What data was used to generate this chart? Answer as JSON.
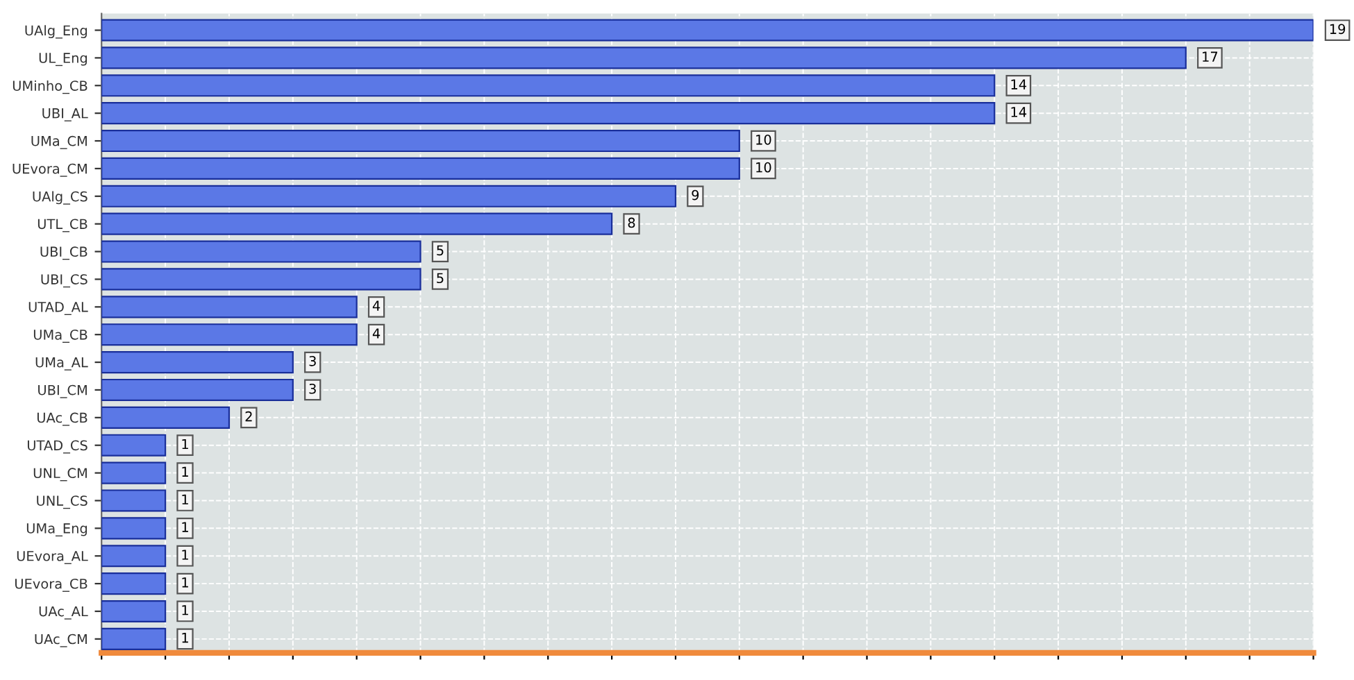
{
  "chart_data": {
    "type": "bar",
    "orientation": "horizontal",
    "categories": [
      "UAlg_Eng",
      "UL_Eng",
      "UMinho_CB",
      "UBI_AL",
      "UMa_CM",
      "UEvora_CM",
      "UAlg_CS",
      "UTL_CB",
      "UBI_CB",
      "UBI_CS",
      "UTAD_AL",
      "UMa_CB",
      "UMa_AL",
      "UBI_CM",
      "UAc_CB",
      "UTAD_CS",
      "UNL_CM",
      "UNL_CS",
      "UMa_Eng",
      "UEvora_AL",
      "UEvora_CB",
      "UAc_AL",
      "UAc_CM"
    ],
    "values": [
      19,
      17,
      14,
      14,
      10,
      10,
      9,
      8,
      5,
      5,
      4,
      4,
      3,
      3,
      2,
      1,
      1,
      1,
      1,
      1,
      1,
      1,
      1
    ],
    "color": "#5b78e6",
    "xlim": [
      0,
      19
    ],
    "xticks": [
      {
        "value": 0,
        "label": null
      },
      {
        "value": 1,
        "label": null
      },
      {
        "value": 2,
        "label": null
      },
      {
        "value": 3,
        "label": null
      },
      {
        "value": 4,
        "label": null
      },
      {
        "value": 5,
        "label": null
      },
      {
        "value": 6,
        "label": null
      },
      {
        "value": 7,
        "label": null
      },
      {
        "value": 8,
        "label": null
      },
      {
        "value": 9,
        "label": null
      },
      {
        "value": 10,
        "label": null
      },
      {
        "value": 11,
        "label": null
      },
      {
        "value": 12,
        "label": null
      },
      {
        "value": 13,
        "label": null
      },
      {
        "value": 14,
        "label": null
      },
      {
        "value": 15,
        "label": null
      },
      {
        "value": 16,
        "label": null
      },
      {
        "value": 17,
        "label": null
      },
      {
        "value": 18,
        "label": null
      },
      {
        "value": 19,
        "label": null
      }
    ],
    "tick_labels": "y",
    "data_labels": true,
    "grid": true
  }
}
